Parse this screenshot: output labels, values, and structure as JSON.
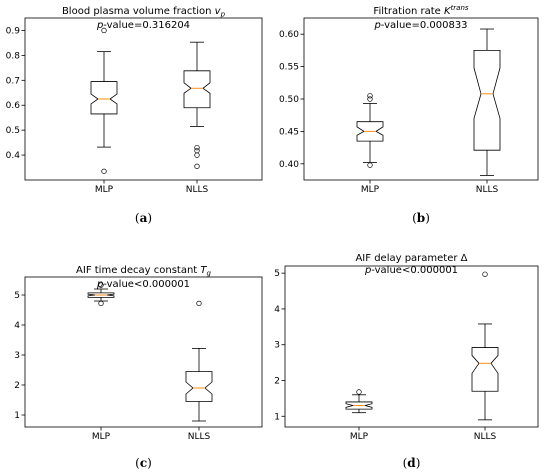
{
  "chart_data": [
    {
      "type": "box",
      "title": "Blood plasma volume fraction",
      "title_symbol": "v",
      "title_subscript": "p",
      "pvalue_prefix": "p",
      "pvalue_text": "-value=0.316204",
      "caption": "(a)",
      "categories": [
        "MLP",
        "NLLS"
      ],
      "ylim": [
        0.3,
        0.95
      ],
      "yticks": [
        "0.4",
        "0.5",
        "0.6",
        "0.7",
        "0.8",
        "0.9"
      ],
      "boxes": [
        {
          "q1": 0.565,
          "median": 0.625,
          "q3": 0.695,
          "notch_low": 0.605,
          "notch_high": 0.645,
          "whisker_low": 0.432,
          "whisker_high": 0.815,
          "outliers": [
            0.9,
            0.335
          ]
        },
        {
          "q1": 0.59,
          "median": 0.668,
          "q3": 0.738,
          "notch_low": 0.648,
          "notch_high": 0.69,
          "whisker_low": 0.515,
          "whisker_high": 0.853,
          "outliers": [
            0.43,
            0.418,
            0.4,
            0.355
          ]
        }
      ],
      "median_color": "#ff8c1a"
    },
    {
      "type": "box",
      "title": "Filtration rate",
      "title_symbol": "K",
      "title_superscript": "trans",
      "pvalue_prefix": "p",
      "pvalue_text": "-value=0.000833",
      "caption": "(b)",
      "categories": [
        "MLP",
        "NLLS"
      ],
      "ylim": [
        0.375,
        0.625
      ],
      "yticks": [
        "0.40",
        "0.45",
        "0.50",
        "0.55",
        "0.60"
      ],
      "boxes": [
        {
          "q1": 0.435,
          "median": 0.45,
          "q3": 0.465,
          "notch_low": 0.444,
          "notch_high": 0.457,
          "whisker_low": 0.402,
          "whisker_high": 0.493,
          "outliers": [
            0.398,
            0.505,
            0.5
          ]
        },
        {
          "q1": 0.421,
          "median": 0.508,
          "q3": 0.575,
          "notch_low": 0.47,
          "notch_high": 0.548,
          "whisker_low": 0.382,
          "whisker_high": 0.608,
          "outliers": []
        }
      ],
      "median_color": "#ff8c1a"
    },
    {
      "type": "box",
      "title": "AIF time decay constant",
      "title_symbol": "T",
      "title_subscript": "g",
      "pvalue_prefix": "p",
      "pvalue_text": "-value<0.000001",
      "caption": "(c)",
      "categories": [
        "MLP",
        "NLLS"
      ],
      "ylim": [
        0.6,
        5.6
      ],
      "yticks": [
        "1",
        "2",
        "3",
        "4",
        "5"
      ],
      "boxes": [
        {
          "q1": 4.92,
          "median": 5.0,
          "q3": 5.07,
          "notch_low": 4.97,
          "notch_high": 5.03,
          "whisker_low": 4.8,
          "whisker_high": 5.2,
          "outliers": [
            5.33,
            4.72
          ]
        },
        {
          "q1": 1.45,
          "median": 1.9,
          "q3": 2.45,
          "notch_low": 1.7,
          "notch_high": 2.1,
          "whisker_low": 0.8,
          "whisker_high": 3.22,
          "outliers": [
            4.72
          ]
        }
      ],
      "median_color": "#ff8c1a"
    },
    {
      "type": "box",
      "title": "AIF delay parameter Δ",
      "pvalue_prefix": "p",
      "pvalue_text": "-value<0.000001",
      "caption": "(d)",
      "categories": [
        "MLP",
        "NLLS"
      ],
      "ylim": [
        0.7,
        5.2
      ],
      "yticks": [
        "1",
        "2",
        "3",
        "4",
        "5"
      ],
      "boxes": [
        {
          "q1": 1.2,
          "median": 1.3,
          "q3": 1.4,
          "notch_low": 1.25,
          "notch_high": 1.35,
          "whisker_low": 1.1,
          "whisker_high": 1.6,
          "outliers": [
            1.68
          ]
        },
        {
          "q1": 1.7,
          "median": 2.48,
          "q3": 2.92,
          "notch_low": 2.2,
          "notch_high": 2.7,
          "whisker_low": 0.9,
          "whisker_high": 3.58,
          "outliers": [
            4.97
          ]
        }
      ],
      "median_color": "#ff8c1a"
    }
  ]
}
